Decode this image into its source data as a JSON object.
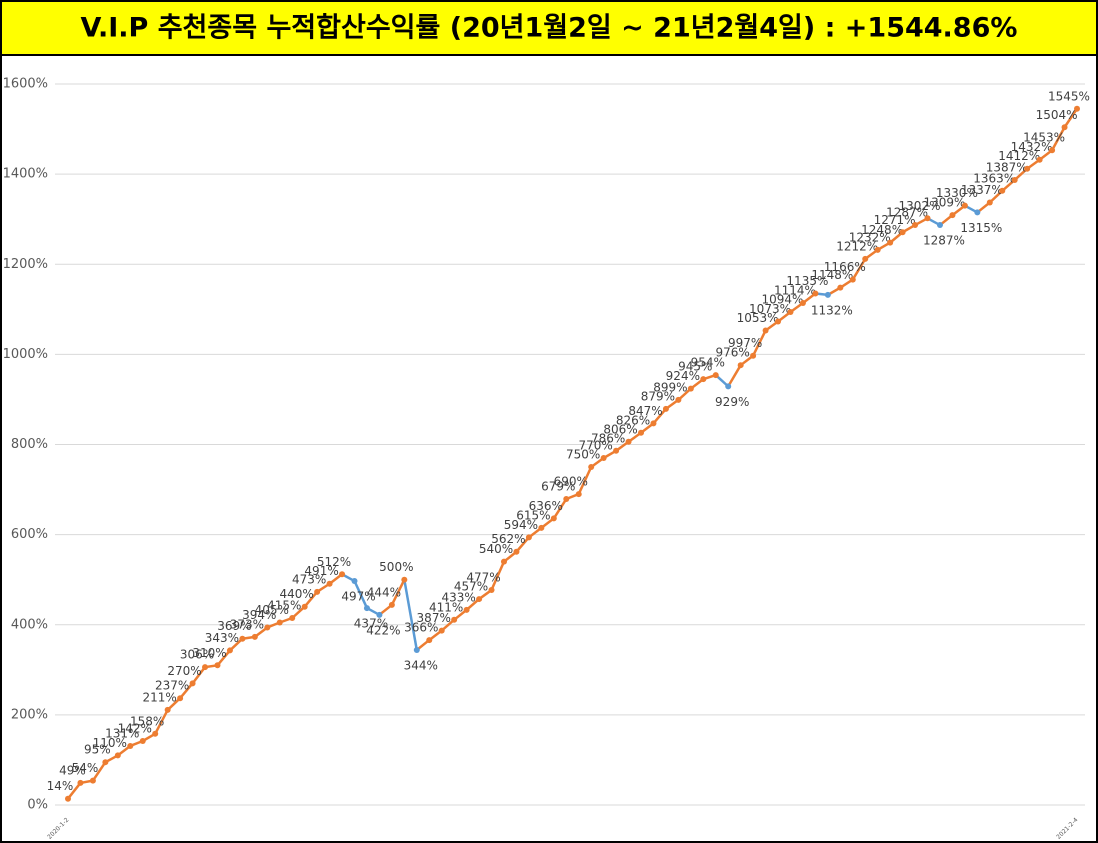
{
  "chart_data": {
    "type": "line",
    "title": "V.I.P 추천종목 누적합산수익률 (20년1월2일 ~ 21년2월4일) : +1544.86%",
    "categories": [
      "2020-1-2",
      null,
      null,
      null,
      null,
      null,
      null,
      null,
      null,
      null,
      null,
      null,
      null,
      null,
      null,
      null,
      null,
      null,
      null,
      null,
      null,
      null,
      null,
      null,
      null,
      null,
      null,
      null,
      null,
      null,
      null,
      null,
      null,
      null,
      null,
      null,
      null,
      null,
      null,
      null,
      null,
      null,
      null,
      null,
      null,
      null,
      null,
      null,
      null,
      null,
      null,
      null,
      null,
      null,
      null,
      null,
      null,
      null,
      null,
      null,
      null,
      null,
      null,
      null,
      null,
      null,
      null,
      null,
      null,
      null,
      null,
      null,
      null,
      null,
      null,
      null,
      null,
      null,
      null,
      null,
      null,
      "2021-2-4"
    ],
    "values": [
      14,
      49,
      54,
      95,
      110,
      131,
      142,
      158,
      211,
      237,
      270,
      306,
      310,
      343,
      369,
      373,
      394,
      405,
      415,
      440,
      473,
      491,
      512,
      497,
      437,
      422,
      444,
      500,
      344,
      366,
      387,
      411,
      433,
      457,
      477,
      540,
      562,
      594,
      615,
      636,
      679,
      690,
      750,
      770,
      786,
      806,
      826,
      847,
      879,
      899,
      924,
      945,
      954,
      929,
      976,
      997,
      1053,
      1073,
      1094,
      1114,
      1135,
      1132,
      1148,
      1166,
      1212,
      1232,
      1248,
      1271,
      1287,
      1302,
      1287,
      1309,
      1330,
      1315,
      1337,
      1363,
      1387,
      1412,
      1432,
      1453,
      1504,
      1545
    ],
    "value_labels": [
      "14%",
      "49%",
      "54%",
      "95%",
      "110%",
      "131%",
      "142%",
      "158%",
      "211%",
      "237%",
      "270%",
      "306%",
      "310%",
      "343%",
      "369%",
      "373%",
      "394%",
      "405%",
      "415%",
      "440%",
      "473%",
      "491%",
      "512%",
      "497%",
      "437%",
      "422%",
      "444%",
      "500%",
      "344%",
      "366%",
      "387%",
      "411%",
      "433%",
      "457%",
      "477%",
      "540%",
      "562%",
      "594%",
      "615%",
      "636%",
      "679%",
      "690%",
      "750%",
      "770%",
      "786%",
      "806%",
      "826%",
      "847%",
      "879%",
      "899%",
      "924%",
      "945%",
      "954%",
      "929%",
      "976%",
      "997%",
      "1053%",
      "1073%",
      "1094%",
      "1114%",
      "1135%",
      "1132%",
      "1148%",
      "1166%",
      "1212%",
      "1232%",
      "1248%",
      "1271%",
      "1287%",
      "1302%",
      "1287%",
      "1309%",
      "1330%",
      "1315%",
      "1337%",
      "1363%",
      "1387%",
      "1412%",
      "1432%",
      "1453%",
      "1504%",
      "1545%"
    ],
    "color": "#ed7d31",
    "down_color": "#5b9bd5",
    "ylim": [
      0,
      1600
    ],
    "yticks": [
      {
        "value": 0,
        "label": "0%"
      },
      {
        "value": 200,
        "label": "200%"
      },
      {
        "value": 400,
        "label": "400%"
      },
      {
        "value": 600,
        "label": "600%"
      },
      {
        "value": 800,
        "label": "800%"
      },
      {
        "value": 1000,
        "label": "1000%"
      },
      {
        "value": 1200,
        "label": "1200%"
      },
      {
        "value": 1400,
        "label": "1400%"
      },
      {
        "value": 1600,
        "label": "1600%"
      }
    ],
    "grid": true
  }
}
